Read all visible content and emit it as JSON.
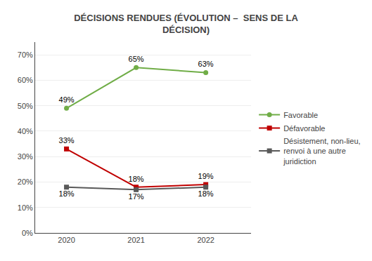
{
  "chart_data": {
    "type": "line",
    "title": "DÉCISIONS RENDUES (ÉVOLUTION –  SENS DE LA\nDÉCISION)",
    "x": [
      2020,
      2021,
      2022
    ],
    "series": [
      {
        "name": "Favorable",
        "color": "#70AD47",
        "marker": "circle",
        "values": [
          49,
          65,
          63
        ],
        "value_labels": [
          "49%",
          "65%",
          "63%"
        ]
      },
      {
        "name": "Défavorable",
        "color": "#C00000",
        "marker": "square",
        "values": [
          33,
          18,
          19
        ],
        "value_labels": [
          "33%",
          "18%",
          "19%"
        ]
      },
      {
        "name": "Désistement, non-lieu,\nrenvoi à une autre\njuridiction",
        "color": "#595959",
        "marker": "square",
        "values": [
          18,
          17,
          18
        ],
        "value_labels": [
          "18%",
          "17%",
          "18%"
        ]
      }
    ],
    "xlim": [
      2019.55,
      2022.65
    ],
    "xticks": [
      2020,
      2021,
      2022
    ],
    "ylim": [
      0,
      75
    ],
    "yticks": [
      {
        "value": 0,
        "label": "0%"
      },
      {
        "value": 10,
        "label": "10%"
      },
      {
        "value": 20,
        "label": "20%"
      },
      {
        "value": 30,
        "label": "30%"
      },
      {
        "value": 40,
        "label": "40%"
      },
      {
        "value": 50,
        "label": "50%"
      },
      {
        "value": 60,
        "label": "60%"
      },
      {
        "value": 70,
        "label": "70%"
      }
    ],
    "grid": true,
    "legend": "right",
    "data_labels": true
  }
}
